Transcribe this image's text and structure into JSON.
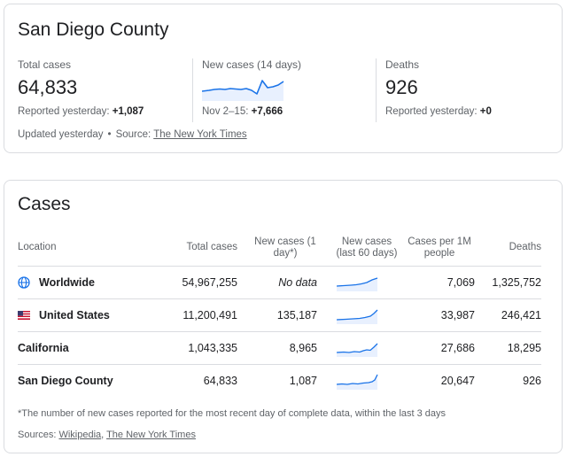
{
  "summary": {
    "title": "San Diego County",
    "total": {
      "label": "Total cases",
      "value": "64,833",
      "sub_prefix": "Reported yesterday: ",
      "sub_value": "+1,087"
    },
    "new": {
      "label": "New cases (14 days)",
      "sub_prefix": "Nov 2–15: ",
      "sub_value": "+7,666"
    },
    "deaths": {
      "label": "Deaths",
      "value": "926",
      "sub_prefix": "Reported yesterday: ",
      "sub_value": "+0"
    },
    "updated": "Updated yesterday",
    "dot": "•",
    "source_prefix": "Source: ",
    "source_link": "The New York Times"
  },
  "cases": {
    "title": "Cases",
    "columns": [
      "Location",
      "Total cases",
      "New cases (1 day*)",
      "New cases (last 60 days)",
      "Cases per 1M people",
      "Deaths"
    ],
    "rows": [
      {
        "location": "Worldwide",
        "icon": "globe-icon",
        "total": "54,967,255",
        "new": "No data",
        "per_million": "7,069",
        "deaths": "1,325,752"
      },
      {
        "location": "United States",
        "icon": "us-flag-icon",
        "total": "11,200,491",
        "new": "135,187",
        "per_million": "33,987",
        "deaths": "246,421"
      },
      {
        "location": "California",
        "icon": "",
        "total": "1,043,335",
        "new": "8,965",
        "per_million": "27,686",
        "deaths": "18,295"
      },
      {
        "location": "San Diego County",
        "icon": "",
        "total": "64,833",
        "new": "1,087",
        "per_million": "20,647",
        "deaths": "926"
      }
    ],
    "footnote": "*The number of new cases reported for the most recent day of complete data, within the last 3 days",
    "sources_prefix": "Sources: ",
    "sources_link1": "Wikipedia",
    "sources_sep": ", ",
    "sources_link2": "The New York Times"
  },
  "colors": {
    "accent": "#1a73e8",
    "fill": "#e8f0fe"
  }
}
